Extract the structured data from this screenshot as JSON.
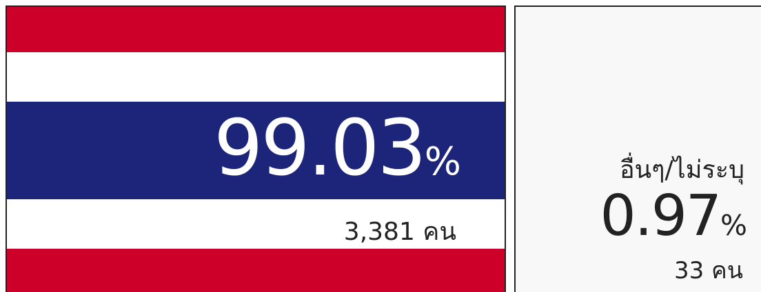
{
  "panels": [
    {
      "value": "99.03",
      "unit": "%",
      "count": "3,381 คน"
    },
    {
      "label": "อื่นๆ/ไม่ระบุ",
      "value": "0.97",
      "unit": "%",
      "count": "33 คน"
    }
  ]
}
